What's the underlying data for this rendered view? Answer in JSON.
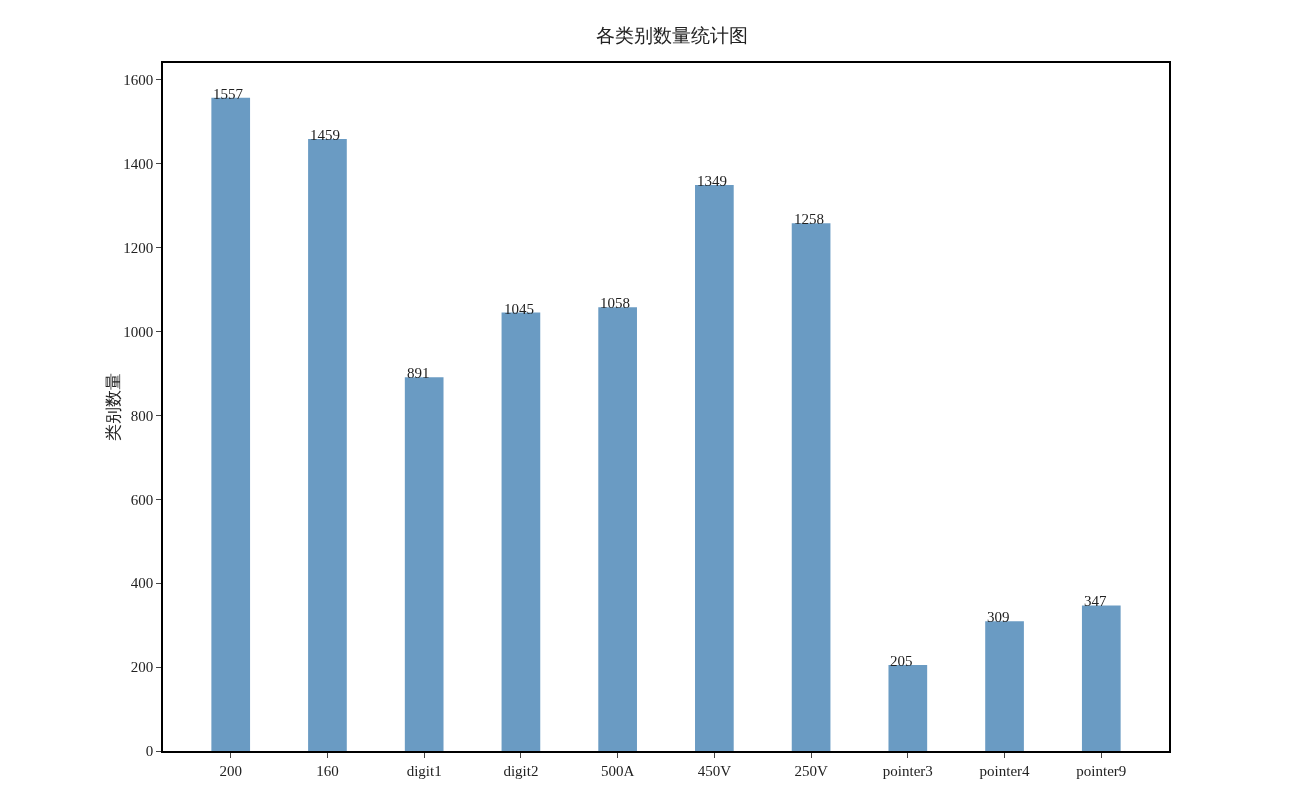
{
  "chart_data": {
    "type": "bar",
    "title": "各类别数量统计图",
    "ylabel": "类别数量",
    "categories": [
      "200",
      "160",
      "digit1",
      "digit2",
      "500A",
      "450V",
      "250V",
      "pointer3",
      "pointer4",
      "pointer9"
    ],
    "values": [
      1557,
      1459,
      891,
      1045,
      1058,
      1349,
      1258,
      205,
      309,
      347
    ],
    "color": "#6a9bc3",
    "ylim": [
      0,
      1640
    ],
    "yticks": [
      0,
      200,
      400,
      600,
      800,
      1000,
      1200,
      1400,
      1600
    ],
    "grid": false,
    "legend": false,
    "data_labels": true
  }
}
